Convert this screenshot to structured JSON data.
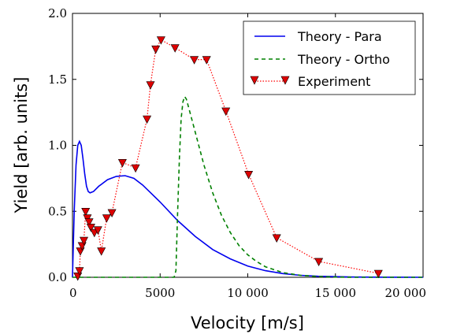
{
  "chart_data": {
    "type": "line",
    "title": "",
    "xlabel": "Velocity [m/s]",
    "ylabel": "Yield [arb. units]",
    "xlim": [
      0,
      20000
    ],
    "ylim": [
      0,
      2.0
    ],
    "xticks": [
      0,
      5000,
      10000,
      15000,
      20000
    ],
    "xtick_labels": [
      "0",
      "5000",
      "10 000",
      "15 000",
      "20 000"
    ],
    "yticks": [
      0.0,
      0.5,
      1.0,
      1.5,
      2.0
    ],
    "ytick_labels": [
      "0.0",
      "0.5",
      "1.0",
      "1.5",
      "2.0"
    ],
    "grid": false,
    "legend_position": "top-right",
    "series": [
      {
        "name": "Theory - Para",
        "style": "solid",
        "color": "#0000ee",
        "x": [
          0,
          100,
          200,
          300,
          400,
          500,
          600,
          700,
          800,
          900,
          1000,
          1200,
          1500,
          2000,
          2500,
          3000,
          3500,
          4000,
          5000,
          6000,
          7000,
          8000,
          9000,
          10000,
          11000,
          12000,
          13000,
          14000,
          16000,
          18000,
          20000
        ],
        "y": [
          0.0,
          0.5,
          0.85,
          1.0,
          1.03,
          1.0,
          0.9,
          0.78,
          0.69,
          0.65,
          0.64,
          0.65,
          0.69,
          0.74,
          0.765,
          0.77,
          0.75,
          0.7,
          0.57,
          0.43,
          0.31,
          0.21,
          0.14,
          0.085,
          0.05,
          0.028,
          0.015,
          0.008,
          0.002,
          0.0005,
          0.0
        ]
      },
      {
        "name": "Theory - Ortho",
        "style": "dashed",
        "color": "#008000",
        "x": [
          0,
          5800,
          5900,
          6000,
          6100,
          6200,
          6300,
          6400,
          6500,
          6700,
          7000,
          7500,
          8000,
          8500,
          9000,
          9500,
          10000,
          10500,
          11000,
          12000,
          13000,
          14000,
          15000,
          16000,
          20000
        ],
        "y": [
          0.0,
          0.0,
          0.05,
          0.5,
          0.9,
          1.2,
          1.33,
          1.37,
          1.35,
          1.25,
          1.1,
          0.85,
          0.64,
          0.47,
          0.34,
          0.24,
          0.17,
          0.12,
          0.08,
          0.035,
          0.015,
          0.006,
          0.002,
          0.0,
          0.0
        ]
      },
      {
        "name": "Experiment",
        "style": "dotted-triangle",
        "color": "#ff0000",
        "marker_color": "#dd0000",
        "x": [
          300,
          400,
          450,
          550,
          650,
          750,
          850,
          950,
          1050,
          1250,
          1450,
          1650,
          1950,
          2250,
          2850,
          3600,
          4250,
          4450,
          4750,
          5050,
          5850,
          6950,
          7650,
          8750,
          10050,
          11650,
          14050,
          17450
        ],
        "y": [
          0.01,
          0.05,
          0.2,
          0.24,
          0.28,
          0.5,
          0.45,
          0.42,
          0.38,
          0.34,
          0.36,
          0.2,
          0.45,
          0.49,
          0.87,
          0.83,
          1.2,
          1.46,
          1.73,
          1.8,
          1.74,
          1.65,
          1.65,
          1.26,
          0.78,
          0.3,
          0.12,
          0.03
        ]
      }
    ]
  }
}
